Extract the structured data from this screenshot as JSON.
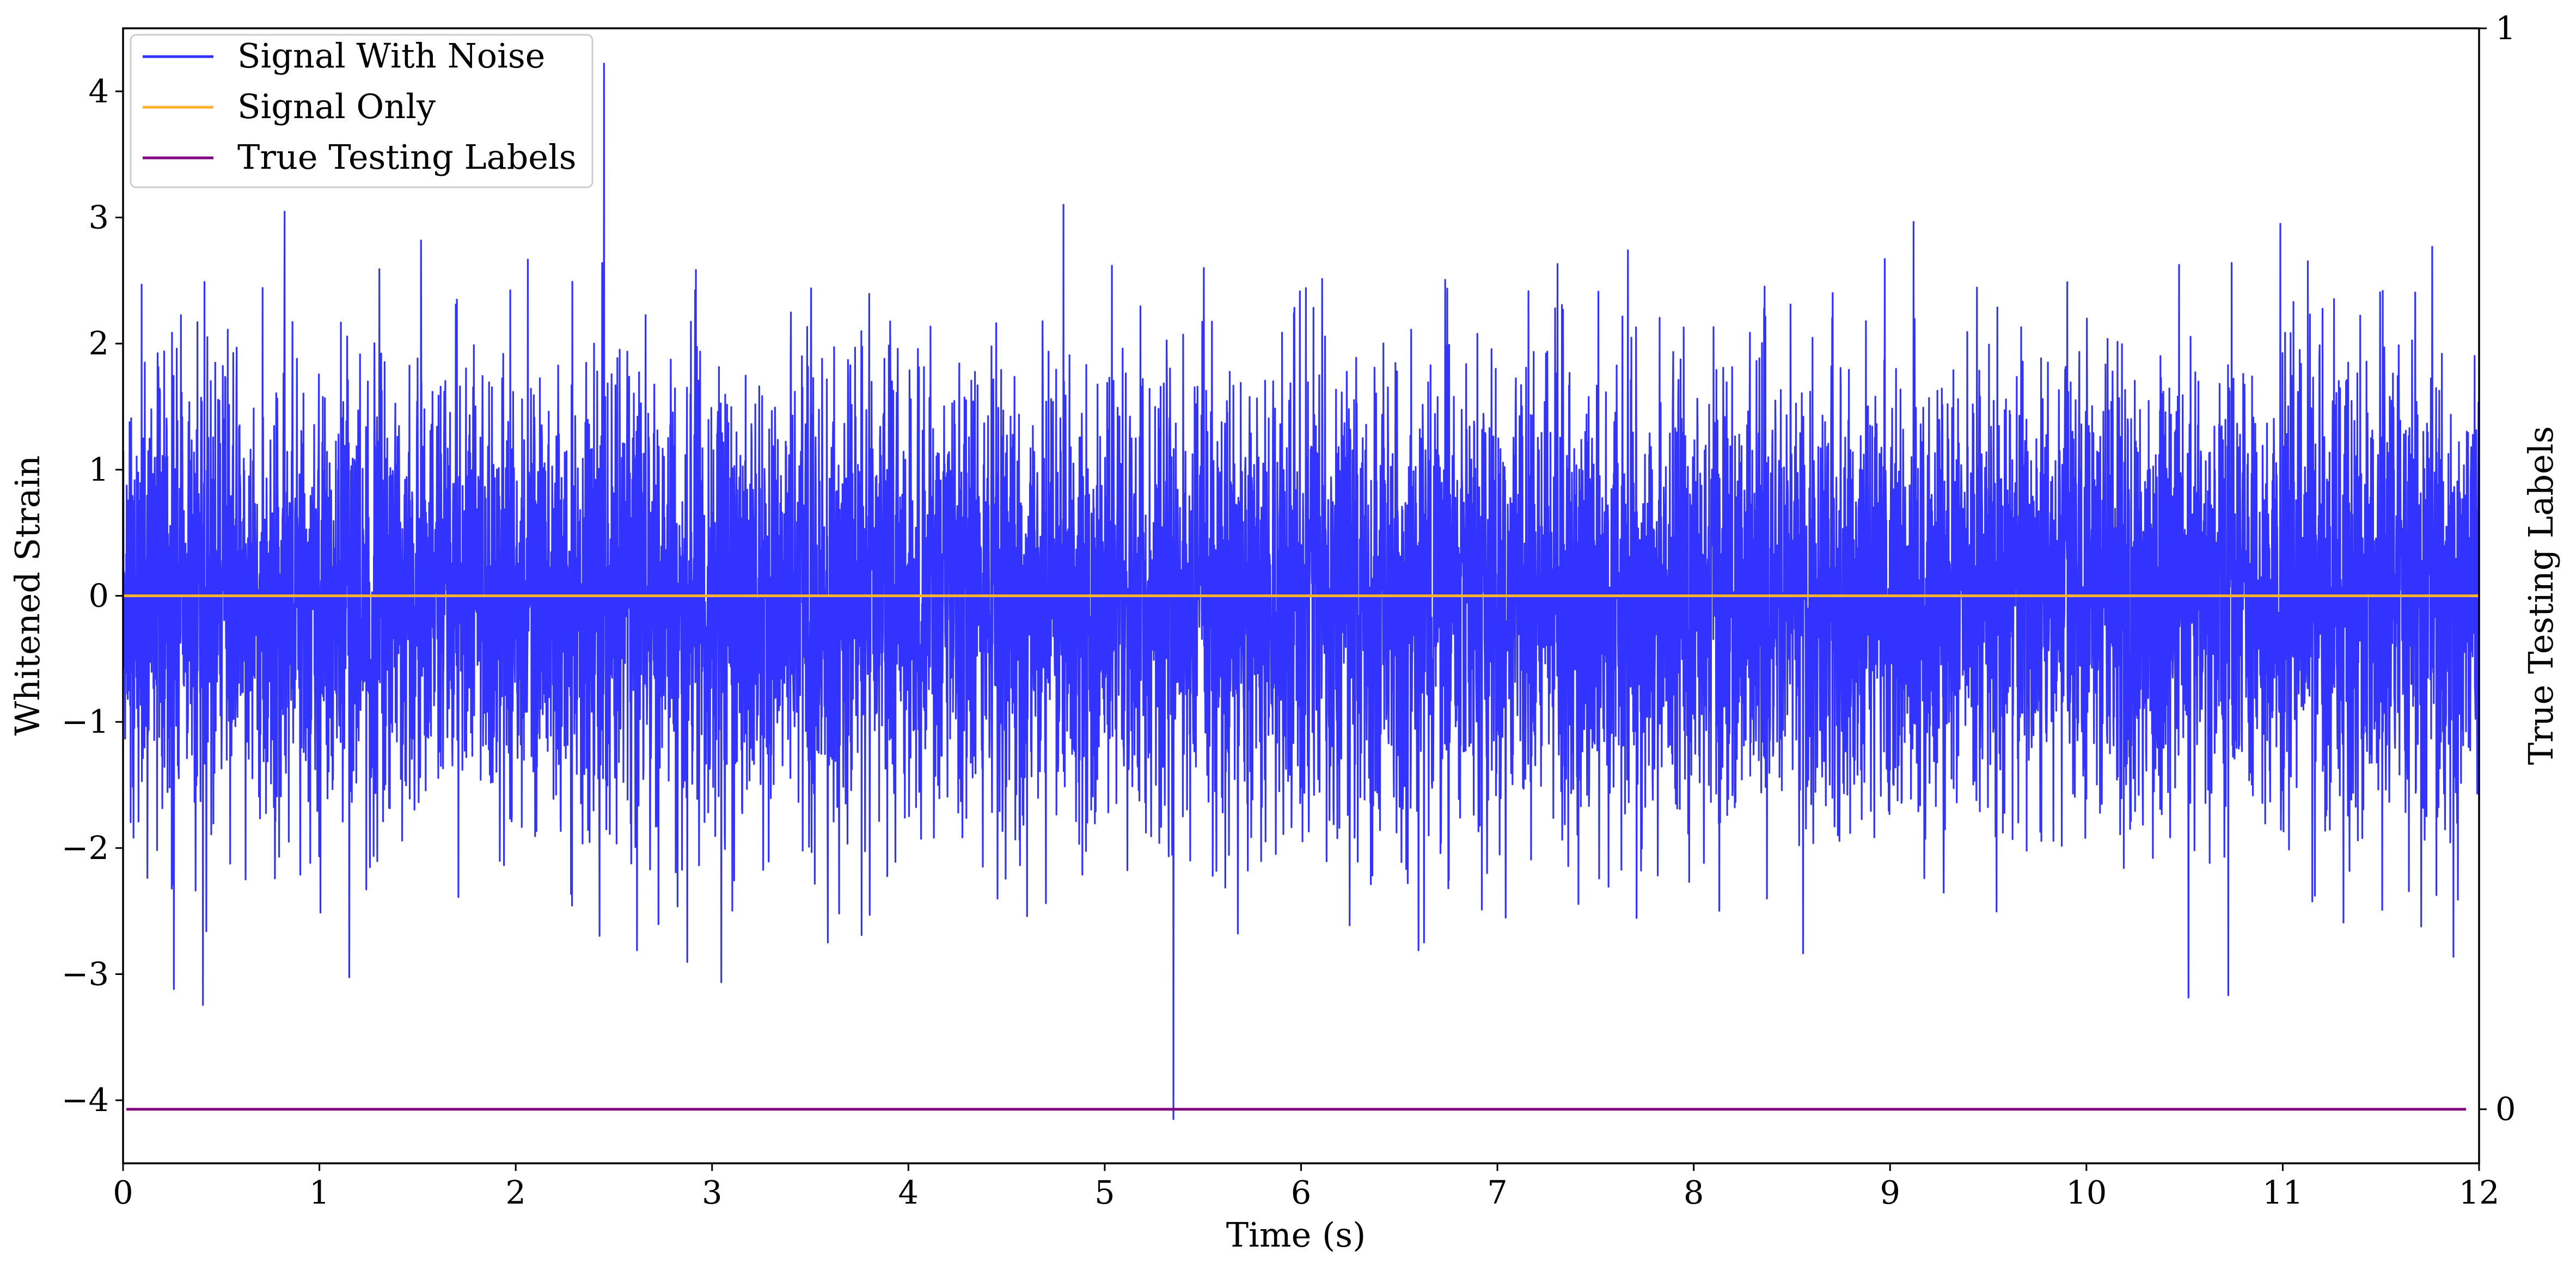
{
  "chart_data": {
    "type": "line",
    "title": "",
    "xlabel": "Time (s)",
    "ylabel": "Whitened Strain",
    "y2label": "True Testing Labels",
    "xlim": [
      0,
      12
    ],
    "ylim": [
      -4.5,
      4.5
    ],
    "y2lim": [
      -0.05,
      1
    ],
    "x_ticks": [
      0,
      1,
      2,
      3,
      4,
      5,
      6,
      7,
      8,
      9,
      10,
      11,
      12
    ],
    "y_ticks": [
      -4,
      -3,
      -2,
      -1,
      0,
      1,
      2,
      3,
      4
    ],
    "y2_ticks": [
      0,
      1
    ],
    "grid": false,
    "legend_position": "top-left",
    "series": [
      {
        "name": "Signal With Noise",
        "axis": "left",
        "color": "#3333ff",
        "style": "gaussian noise, std ~0.9, 4096 Hz",
        "x_range": [
          0,
          12
        ],
        "peak_max": 4.22,
        "peak_max_x": 2.45,
        "peak_min": -4.15,
        "peak_min_x": 5.35
      },
      {
        "name": "Signal Only",
        "axis": "left",
        "color": "#ffb22c",
        "x": [
          0,
          12
        ],
        "values": [
          0,
          0
        ]
      },
      {
        "name": "True Testing Labels",
        "axis": "right",
        "color": "#800080",
        "x": [
          0,
          12
        ],
        "values": [
          0,
          0
        ]
      }
    ]
  }
}
